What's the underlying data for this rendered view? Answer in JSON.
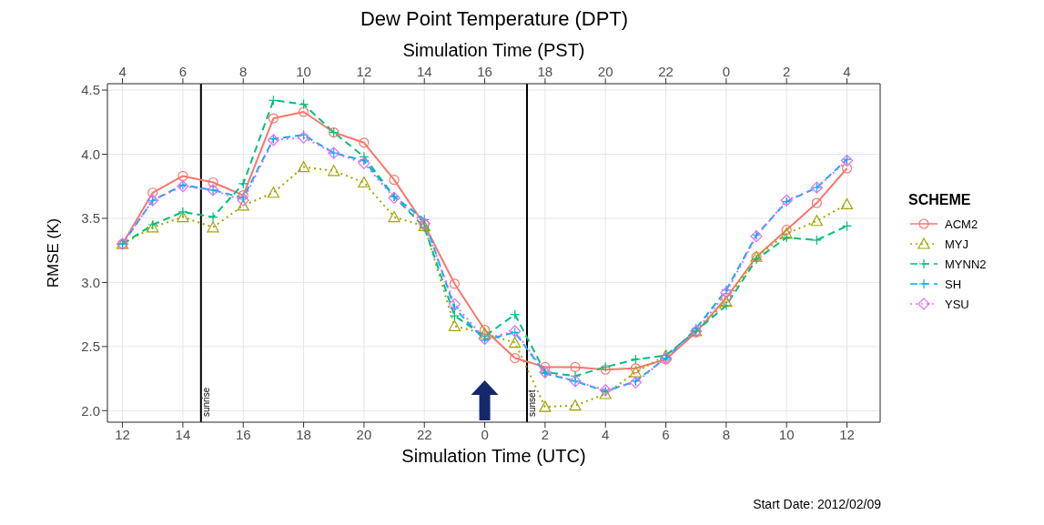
{
  "chart_data": {
    "type": "line",
    "title": "Dew Point Temperature (DPT)",
    "xlabel": "Simulation Time (UTC)",
    "x2label": "Simulation Time (PST)",
    "ylabel": "RMSE (K)",
    "legend_title": "SCHEME",
    "legend": "right",
    "grid": true,
    "x": [
      "2012-02-09T12:00",
      "2012-02-09T13:00",
      "2012-02-09T14:00",
      "2012-02-09T15:00",
      "2012-02-09T16:00",
      "2012-02-09T17:00",
      "2012-02-09T18:00",
      "2012-02-09T19:00",
      "2012-02-09T20:00",
      "2012-02-09T21:00",
      "2012-02-09T22:00",
      "2012-02-09T23:00",
      "2012-02-10T00:00",
      "2012-02-10T01:00",
      "2012-02-10T02:00",
      "2012-02-10T03:00",
      "2012-02-10T04:00",
      "2012-02-10T05:00",
      "2012-02-10T06:00",
      "2012-02-10T07:00",
      "2012-02-10T08:00",
      "2012-02-10T09:00",
      "2012-02-10T10:00",
      "2012-02-10T11:00",
      "2012-02-10T12:00"
    ],
    "xlim": [
      "2012-02-09T11:30",
      "2012-02-10T13:06"
    ],
    "xticks": [
      {
        "value": "2012-02-09T12:00",
        "label": "12"
      },
      {
        "value": "2012-02-09T14:00",
        "label": "14"
      },
      {
        "value": "2012-02-09T16:00",
        "label": "16"
      },
      {
        "value": "2012-02-09T18:00",
        "label": "18"
      },
      {
        "value": "2012-02-09T20:00",
        "label": "20"
      },
      {
        "value": "2012-02-09T22:00",
        "label": "22"
      },
      {
        "value": "2012-02-10T00:00",
        "label": "0"
      },
      {
        "value": "2012-02-10T02:00",
        "label": "2"
      },
      {
        "value": "2012-02-10T04:00",
        "label": "4"
      },
      {
        "value": "2012-02-10T06:00",
        "label": "6"
      },
      {
        "value": "2012-02-10T08:00",
        "label": "8"
      },
      {
        "value": "2012-02-10T10:00",
        "label": "10"
      },
      {
        "value": "2012-02-10T12:00",
        "label": "12"
      }
    ],
    "x2lim": [
      "2012-02-09T03:30",
      "2012-02-10T05:06"
    ],
    "x2ticks": [
      {
        "value": "2012-02-09T04:00",
        "label": "4"
      },
      {
        "value": "2012-02-09T06:00",
        "label": "6"
      },
      {
        "value": "2012-02-09T08:00",
        "label": "8"
      },
      {
        "value": "2012-02-09T10:00",
        "label": "10"
      },
      {
        "value": "2012-02-09T12:00",
        "label": "12"
      },
      {
        "value": "2012-02-09T14:00",
        "label": "14"
      },
      {
        "value": "2012-02-09T16:00",
        "label": "16"
      },
      {
        "value": "2012-02-09T18:00",
        "label": "18"
      },
      {
        "value": "2012-02-09T20:00",
        "label": "20"
      },
      {
        "value": "2012-02-09T22:00",
        "label": "22"
      },
      {
        "value": "2012-02-10T00:00",
        "label": "0"
      },
      {
        "value": "2012-02-10T02:00",
        "label": "2"
      },
      {
        "value": "2012-02-10T04:00",
        "label": "4"
      }
    ],
    "ylim": [
      1.91,
      4.55
    ],
    "yticks": [
      {
        "value": 2,
        "label": "2.0"
      },
      2.5,
      {
        "value": 3,
        "label": "3.0"
      },
      3.5,
      {
        "value": 4,
        "label": "4.0"
      },
      4.5
    ],
    "series": [
      {
        "name": "ACM2",
        "color": "#f8766d",
        "marker": "circle",
        "line_style": "solid",
        "values": [
          3.3,
          3.7,
          3.83,
          3.78,
          3.68,
          4.28,
          4.33,
          4.17,
          4.09,
          3.8,
          3.45,
          2.99,
          2.63,
          2.41,
          2.34,
          2.34,
          2.32,
          2.33,
          2.4,
          2.61,
          2.88,
          3.2,
          3.41,
          3.62,
          3.89
        ]
      },
      {
        "name": "MYJ",
        "color": "#a3a500",
        "marker": "triangle",
        "line_style": "dotted",
        "values": [
          3.3,
          3.43,
          3.51,
          3.43,
          3.6,
          3.7,
          3.9,
          3.87,
          3.78,
          3.51,
          3.44,
          2.66,
          2.6,
          2.53,
          2.03,
          2.04,
          2.13,
          2.3,
          2.43,
          2.62,
          2.85,
          3.2,
          3.38,
          3.48,
          3.61
        ]
      },
      {
        "name": "MYNN2",
        "color": "#00bf7d",
        "marker": "cross",
        "line_style": "dashed",
        "values": [
          3.3,
          3.45,
          3.55,
          3.51,
          3.77,
          4.42,
          4.39,
          4.17,
          3.98,
          3.67,
          3.43,
          2.74,
          2.58,
          2.75,
          2.3,
          2.27,
          2.34,
          2.4,
          2.43,
          2.62,
          2.82,
          3.18,
          3.35,
          3.33,
          3.44
        ]
      },
      {
        "name": "SH",
        "color": "#00b0f6",
        "marker": "cross",
        "line_style": "dashed",
        "values": [
          3.3,
          3.64,
          3.76,
          3.72,
          3.66,
          4.12,
          4.15,
          4.01,
          3.95,
          3.67,
          3.49,
          2.8,
          2.55,
          2.61,
          2.29,
          2.23,
          2.15,
          2.23,
          2.41,
          2.64,
          2.94,
          3.37,
          3.63,
          3.74,
          3.96
        ]
      },
      {
        "name": "YSU",
        "color": "#e76bf3",
        "marker": "diamond",
        "line_style": "dotted",
        "values": [
          3.3,
          3.64,
          3.75,
          3.72,
          3.64,
          4.11,
          4.13,
          4.01,
          3.93,
          3.66,
          3.46,
          2.83,
          2.56,
          2.62,
          2.3,
          2.23,
          2.16,
          2.22,
          2.41,
          2.62,
          2.92,
          3.36,
          3.64,
          3.74,
          3.95
        ]
      }
    ],
    "ref_lines": [
      {
        "axis": "x",
        "value": "2012-02-09T14:36",
        "label": "sunrise",
        "color": "#000000"
      },
      {
        "axis": "x",
        "value": "2012-02-10T01:24",
        "label": "sunset",
        "color": "#000000"
      }
    ],
    "annotations": [
      "Start Date: 2012/02/09"
    ]
  }
}
